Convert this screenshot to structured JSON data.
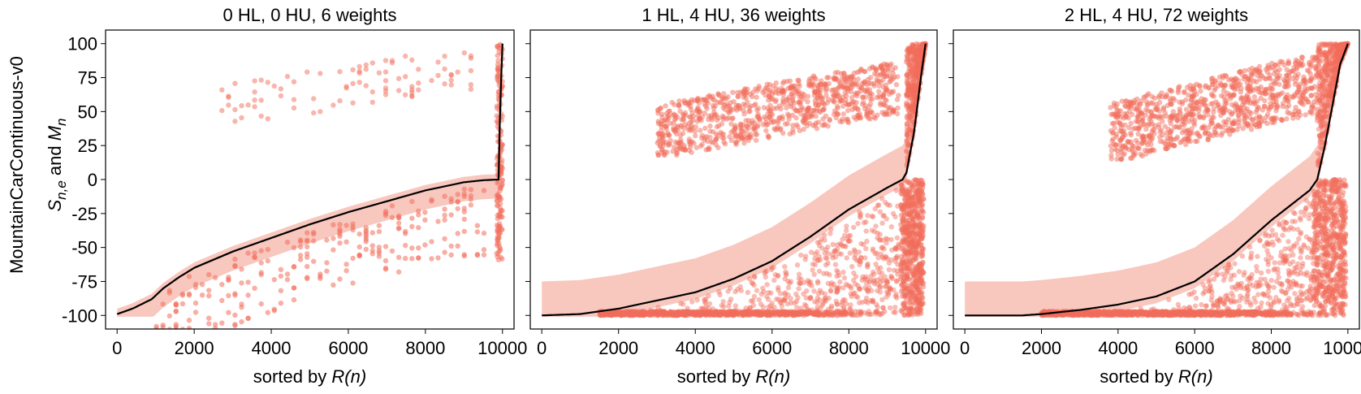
{
  "figure": {
    "row_label": "MountainCarContinuous-v0",
    "ylabel_main": "S",
    "ylabel_sub": "n,e",
    "ylabel_mid": " and ",
    "ylabel_m": "M",
    "ylabel_m_sub": "n",
    "xlabel_prefix": "sorted by ",
    "xlabel_var": "R(n)",
    "colors": {
      "scatter": "#f26d5b",
      "band": "#f6b4a8",
      "line": "#000000"
    }
  },
  "chart_data": [
    {
      "type": "scatter",
      "title": "0 HL, 0 HU, 6 weights",
      "xlim": [
        -300,
        10300
      ],
      "ylim": [
        -110,
        110
      ],
      "xticks": [
        0,
        2000,
        4000,
        6000,
        8000,
        10000
      ],
      "yticks": [
        -100,
        -75,
        -50,
        -25,
        0,
        25,
        50,
        75,
        100
      ],
      "ytick_labels": [
        "-100",
        "-75",
        "-50",
        "-25",
        "0",
        "25",
        "50",
        "75",
        "100"
      ],
      "mean_curve": {
        "x": [
          0,
          400,
          900,
          1200,
          1600,
          2000,
          3000,
          4000,
          5000,
          6000,
          7000,
          8000,
          9000,
          9500,
          9900,
          9920,
          9960,
          10000
        ],
        "y": [
          -99,
          -95,
          -88,
          -80,
          -72,
          -65,
          -53,
          -43,
          -33,
          -24,
          -16,
          -8,
          -2,
          -0.5,
          0,
          30,
          70,
          100
        ]
      },
      "band": {
        "upper_offset": 4,
        "lower_offset": 14
      },
      "below_cloud": {
        "x_range": [
          1000,
          9500
        ],
        "y_below_curve": [
          5,
          55
        ]
      },
      "upper_cloud": {
        "x_range": [
          2700,
          9200
        ],
        "y_range": [
          42,
          95
        ]
      },
      "right_column": {
        "x_range": [
          9850,
          10000
        ],
        "y_range": [
          -60,
          100
        ]
      }
    },
    {
      "type": "scatter",
      "title": "1 HL, 4 HU, 36 weights",
      "xlim": [
        -300,
        10300
      ],
      "ylim": [
        -110,
        110
      ],
      "xticks": [
        0,
        2000,
        4000,
        6000,
        8000,
        10000
      ],
      "yticks": [
        -100,
        -75,
        -50,
        -25,
        0,
        25,
        50,
        75,
        100
      ],
      "mean_curve": {
        "x": [
          0,
          1000,
          1500,
          2000,
          3000,
          4000,
          5000,
          6000,
          7000,
          8000,
          9000,
          9400,
          9500,
          9700,
          9900,
          10000
        ],
        "y": [
          -100,
          -99,
          -97,
          -95,
          -89,
          -83,
          -73,
          -60,
          -42,
          -22,
          -6,
          0,
          5,
          35,
          80,
          100
        ]
      },
      "band": {
        "upper_offset": 25,
        "lower_offset": 5
      },
      "below_cloud": {
        "x_range": [
          1500,
          9300
        ],
        "y_below_curve": [
          5,
          100
        ]
      },
      "upper_cloud": {
        "x_range": [
          3000,
          9300
        ],
        "y_range": [
          18,
          85
        ]
      },
      "right_column": {
        "x_range": [
          9350,
          9950
        ],
        "y_range": [
          -100,
          0
        ]
      },
      "right_top_band": {
        "x_range": [
          9500,
          10000
        ],
        "y_range": [
          10,
          100
        ]
      }
    },
    {
      "type": "scatter",
      "title": "2 HL, 4 HU, 72 weights",
      "xlim": [
        -300,
        10300
      ],
      "ylim": [
        -110,
        110
      ],
      "xticks": [
        0,
        2000,
        4000,
        6000,
        8000,
        10000
      ],
      "yticks": [
        -100,
        -75,
        -50,
        -25,
        0,
        25,
        50,
        75,
        100
      ],
      "mean_curve": {
        "x": [
          0,
          1500,
          2000,
          3000,
          4000,
          5000,
          6000,
          7000,
          8000,
          9000,
          9200,
          9400,
          9600,
          9800,
          10000
        ],
        "y": [
          -100,
          -100,
          -99,
          -96,
          -92,
          -86,
          -75,
          -55,
          -30,
          -8,
          0,
          25,
          55,
          85,
          100
        ]
      },
      "band": {
        "upper_offset": 25,
        "lower_offset": 5
      },
      "below_cloud": {
        "x_range": [
          2000,
          9100
        ],
        "y_below_curve": [
          5,
          100
        ]
      },
      "upper_cloud": {
        "x_range": [
          3800,
          9200
        ],
        "y_range": [
          15,
          90
        ]
      },
      "right_column": {
        "x_range": [
          9100,
          9950
        ],
        "y_range": [
          -100,
          0
        ]
      },
      "right_top_band": {
        "x_range": [
          9200,
          10000
        ],
        "y_range": [
          10,
          100
        ]
      }
    }
  ]
}
